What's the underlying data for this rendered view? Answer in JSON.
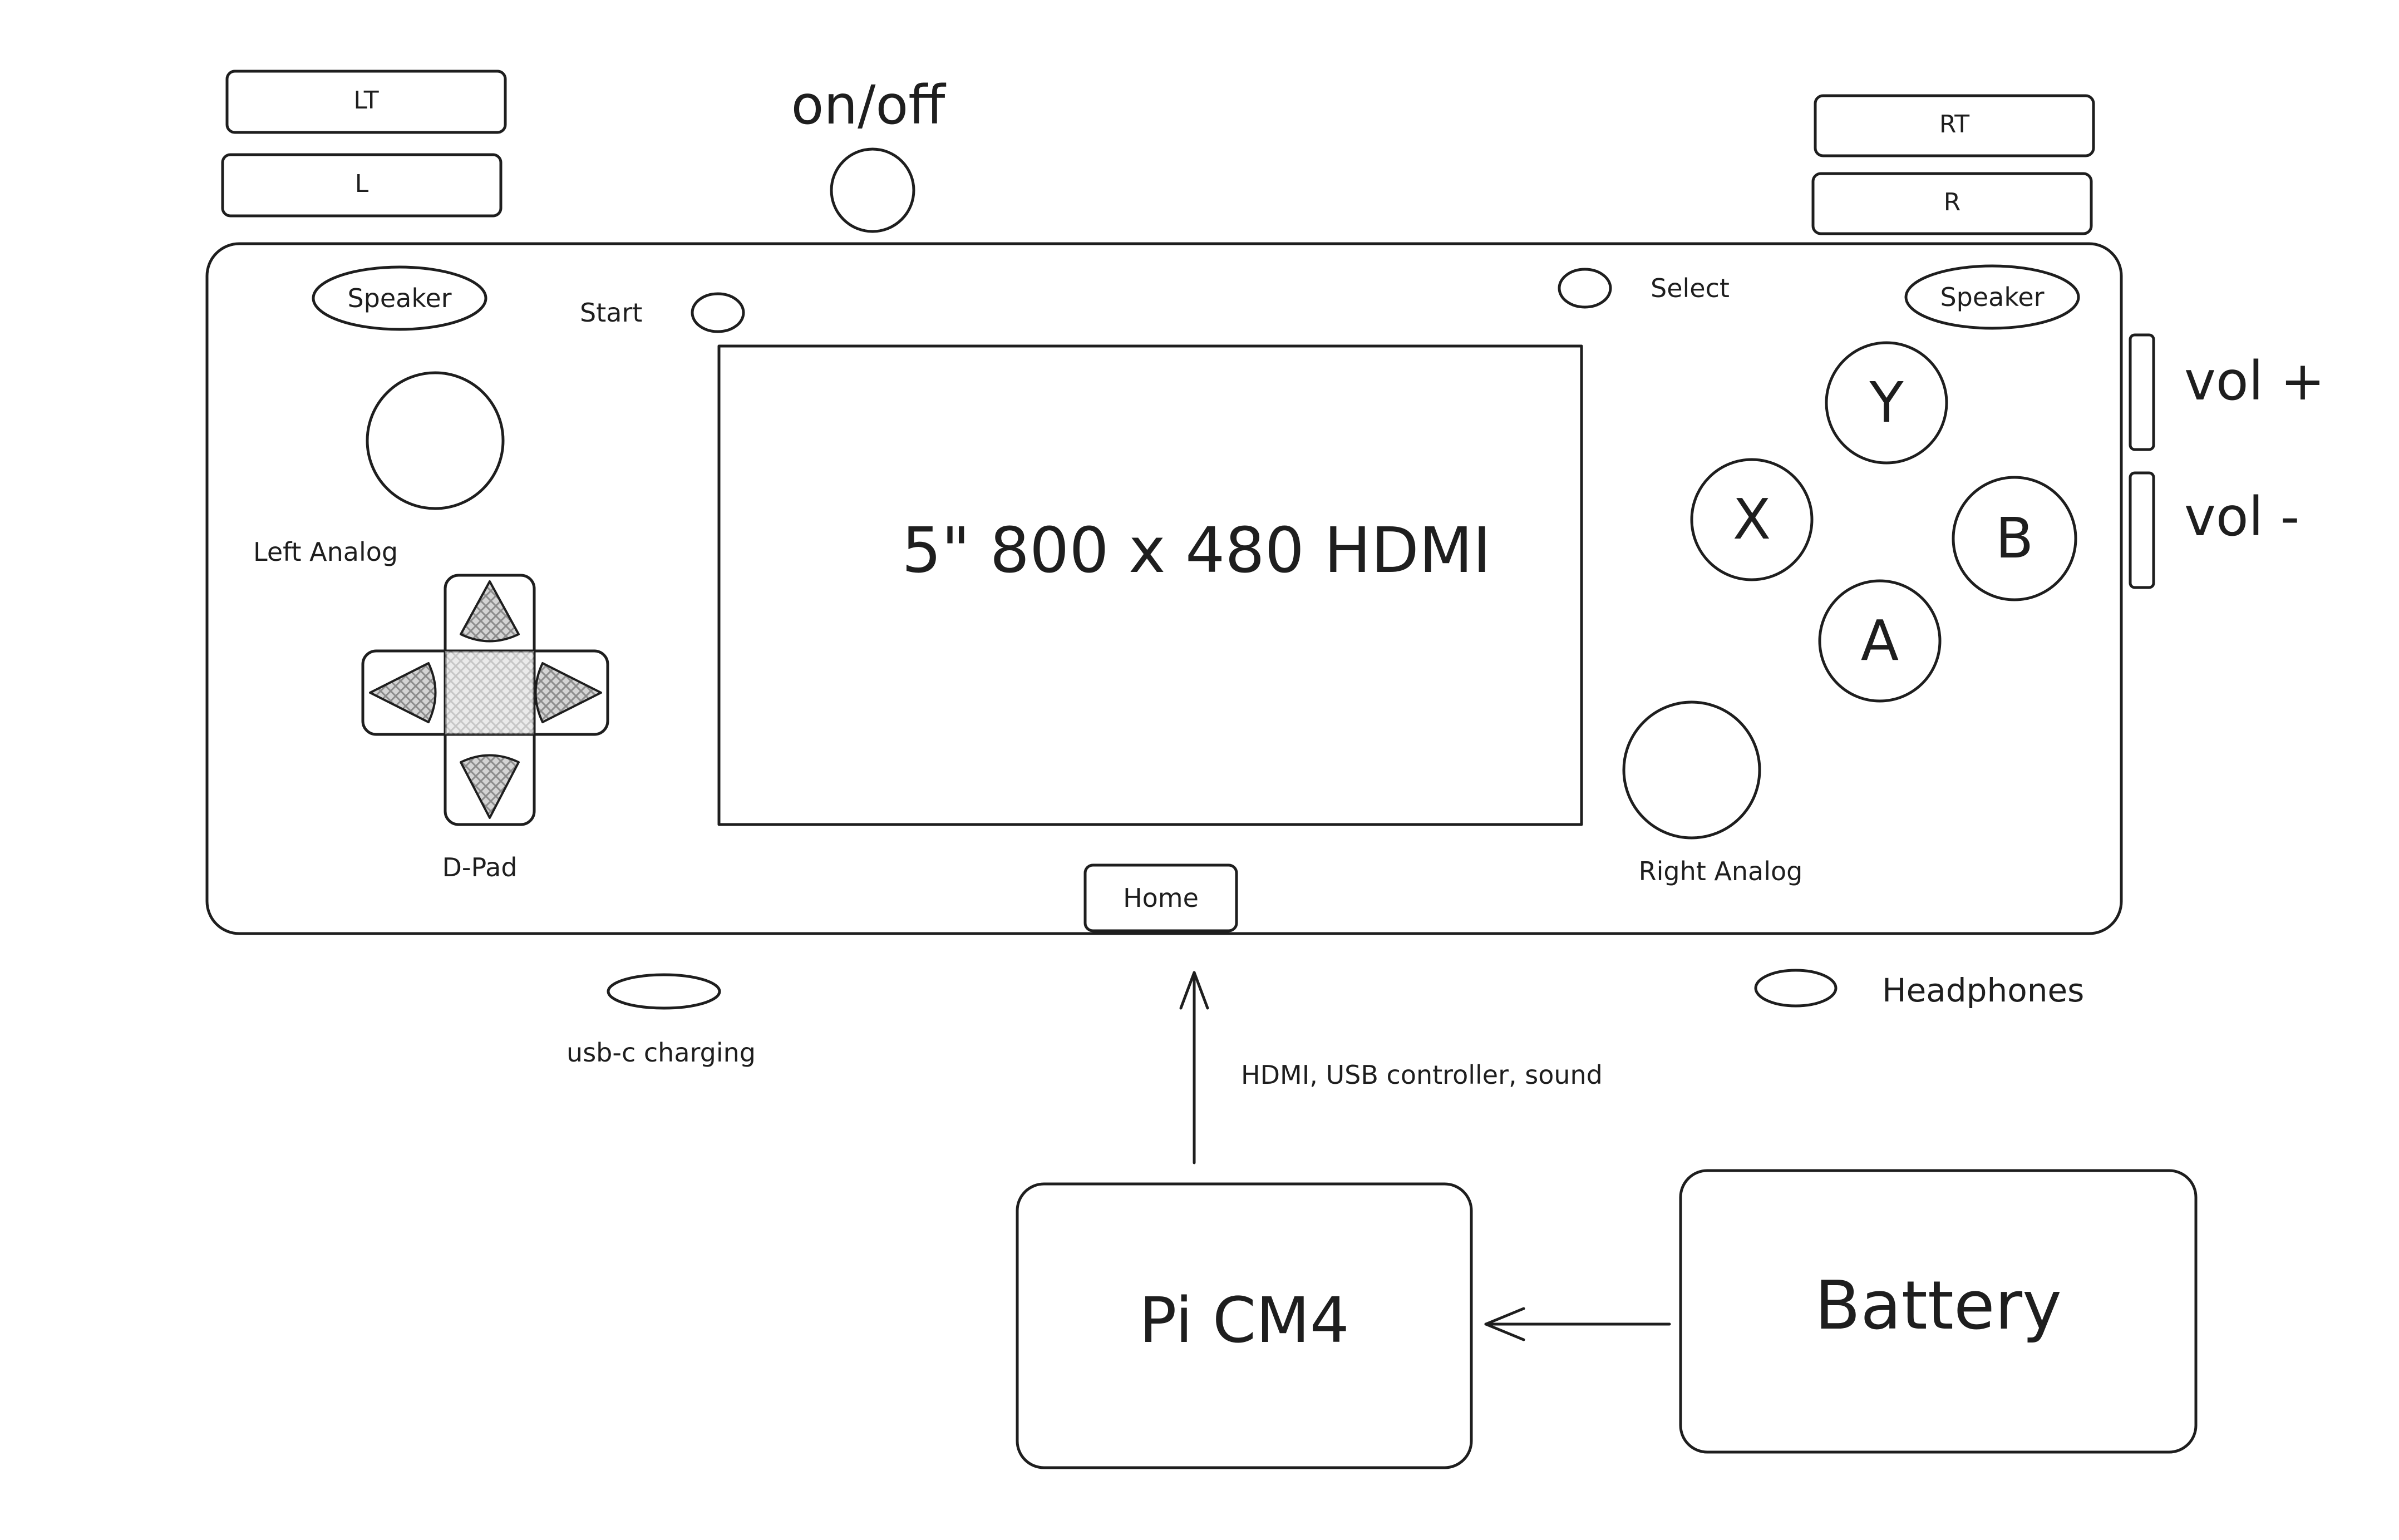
{
  "shoulder": {
    "lt": "LT",
    "l": "L",
    "rt": "RT",
    "r": "R"
  },
  "power": {
    "label": "on/off"
  },
  "device": {
    "speaker_left": "Speaker",
    "speaker_right": "Speaker",
    "start": "Start",
    "select": "Select",
    "left_analog": "Left Analog",
    "right_analog": "Right Analog",
    "dpad": "D-Pad",
    "screen": "5\" 800 x 480 HDMI",
    "home": "Home",
    "buttons": {
      "y": "Y",
      "x": "X",
      "b": "B",
      "a": "A"
    }
  },
  "volume": {
    "up": "vol +",
    "down": "vol -"
  },
  "ports": {
    "usb": "usb-c charging",
    "headphones": "Headphones"
  },
  "connection": {
    "label": "HDMI, USB controller, sound"
  },
  "boxes": {
    "pi": "Pi CM4",
    "battery": "Battery"
  },
  "colors": {
    "stroke": "#1e1e1e",
    "hatch": "#cfcfcf",
    "fill": "#e6e6e6",
    "background": "#ffffff"
  }
}
